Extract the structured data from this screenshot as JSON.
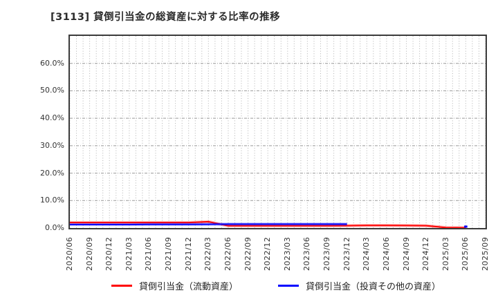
{
  "title": "[3113]  貸倒引当金の総資産に対する比率の推移",
  "chart_data": {
    "type": "line",
    "title": "[3113] 貸倒引当金の総資産に対する比率の推移",
    "xlabel": "",
    "ylabel": "",
    "ylim": [
      0,
      70
    ],
    "grid": "dense dotted monthly vertical lines + dashed horizontal lines every 10%",
    "legend_position": "bottom-center",
    "categories": [
      "2020/06",
      "2020/09",
      "2020/12",
      "2021/03",
      "2021/06",
      "2021/09",
      "2021/12",
      "2022/03",
      "2022/06",
      "2022/09",
      "2022/12",
      "2023/03",
      "2023/06",
      "2023/09",
      "2023/12",
      "2024/03",
      "2024/06",
      "2024/09",
      "2024/12",
      "2025/03",
      "2025/06",
      "2025/09"
    ],
    "y_ticks": [
      {
        "value": 0,
        "label": "0.0%"
      },
      {
        "value": 10,
        "label": "10.0%"
      },
      {
        "value": 20,
        "label": "20.0%"
      },
      {
        "value": 30,
        "label": "30.0%"
      },
      {
        "value": 40,
        "label": "40.0%"
      },
      {
        "value": 50,
        "label": "50.0%"
      },
      {
        "value": 60,
        "label": "60.0%"
      }
    ],
    "series": [
      {
        "name": "貸倒引当金（流動資産）",
        "color": "#ff0000",
        "values": [
          2.0,
          2.0,
          2.0,
          2.0,
          2.0,
          2.0,
          2.0,
          2.3,
          0.8,
          0.8,
          0.8,
          0.8,
          0.8,
          0.8,
          0.85,
          0.95,
          0.95,
          0.9,
          0.85,
          0.15,
          0.1,
          null
        ]
      },
      {
        "name": "貸倒引当金（投資その他の資産）",
        "color": "#0000ff",
        "values": [
          1.25,
          1.25,
          1.25,
          1.25,
          1.3,
          1.3,
          1.3,
          1.35,
          1.4,
          1.4,
          1.4,
          1.4,
          1.4,
          1.4,
          1.4,
          null,
          null,
          null,
          null,
          null,
          0.1,
          null
        ]
      }
    ]
  },
  "colors": {
    "grid_vertical": "#b0b0b0",
    "grid_horizontal": "#999999",
    "plot_border": "#3b3b3b",
    "tick_text": "#333333",
    "title_text": "#2b2b2b"
  }
}
